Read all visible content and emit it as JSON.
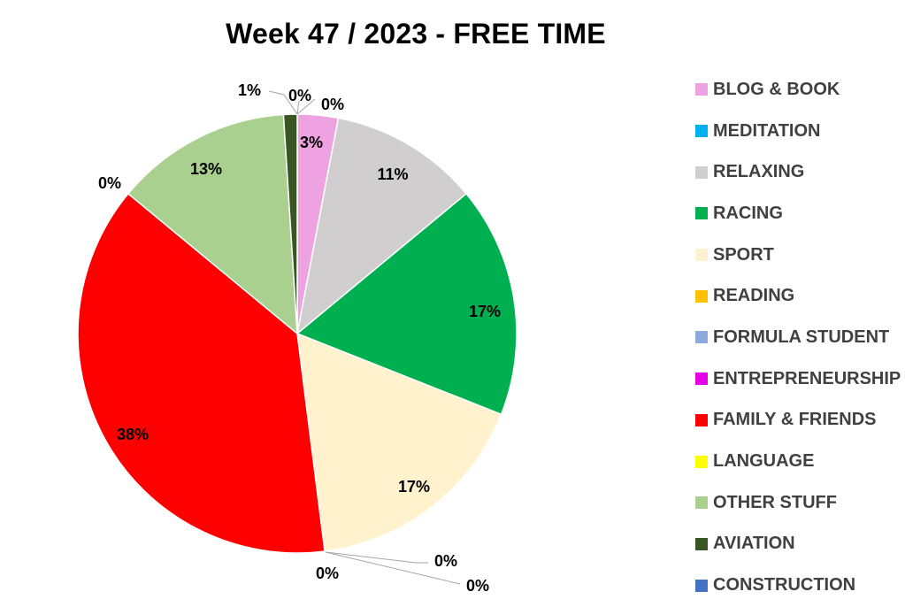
{
  "chart_data": {
    "type": "pie",
    "title": "Week 47 / 2023 - FREE TIME",
    "slices": [
      {
        "name": "BLOG & BOOK",
        "value": 3,
        "label": "3%",
        "color": "#EFA2E1"
      },
      {
        "name": "MEDITATION",
        "value": 0,
        "label": "0%",
        "color": "#00B0F0"
      },
      {
        "name": "RELAXING",
        "value": 11,
        "label": "11%",
        "color": "#D0CECE"
      },
      {
        "name": "RACING",
        "value": 17,
        "label": "17%",
        "color": "#00B050"
      },
      {
        "name": "SPORT",
        "value": 17,
        "label": "17%",
        "color": "#FFF2CC"
      },
      {
        "name": "READING",
        "value": 0,
        "label": "0%",
        "color": "#FFC000"
      },
      {
        "name": "FORMULA STUDENT",
        "value": 0,
        "label": "0%",
        "color": "#8EA9DB"
      },
      {
        "name": "ENTREPRENEURSHIP",
        "value": 0,
        "label": "0%",
        "color": "#E600E6"
      },
      {
        "name": "FAMILY & FRIENDS",
        "value": 38,
        "label": "38%",
        "color": "#FF0000"
      },
      {
        "name": "LANGUAGE",
        "value": 0,
        "label": "0%",
        "color": "#FFFF00"
      },
      {
        "name": "OTHER STUFF",
        "value": 13,
        "label": "13%",
        "color": "#A9D08E"
      },
      {
        "name": "AVIATION",
        "value": 1,
        "label": "1%",
        "color": "#375623"
      },
      {
        "name": "CONSTRUCTION",
        "value": 0,
        "label": "0%",
        "color": "#4472C4"
      }
    ],
    "legend_position": "right"
  }
}
